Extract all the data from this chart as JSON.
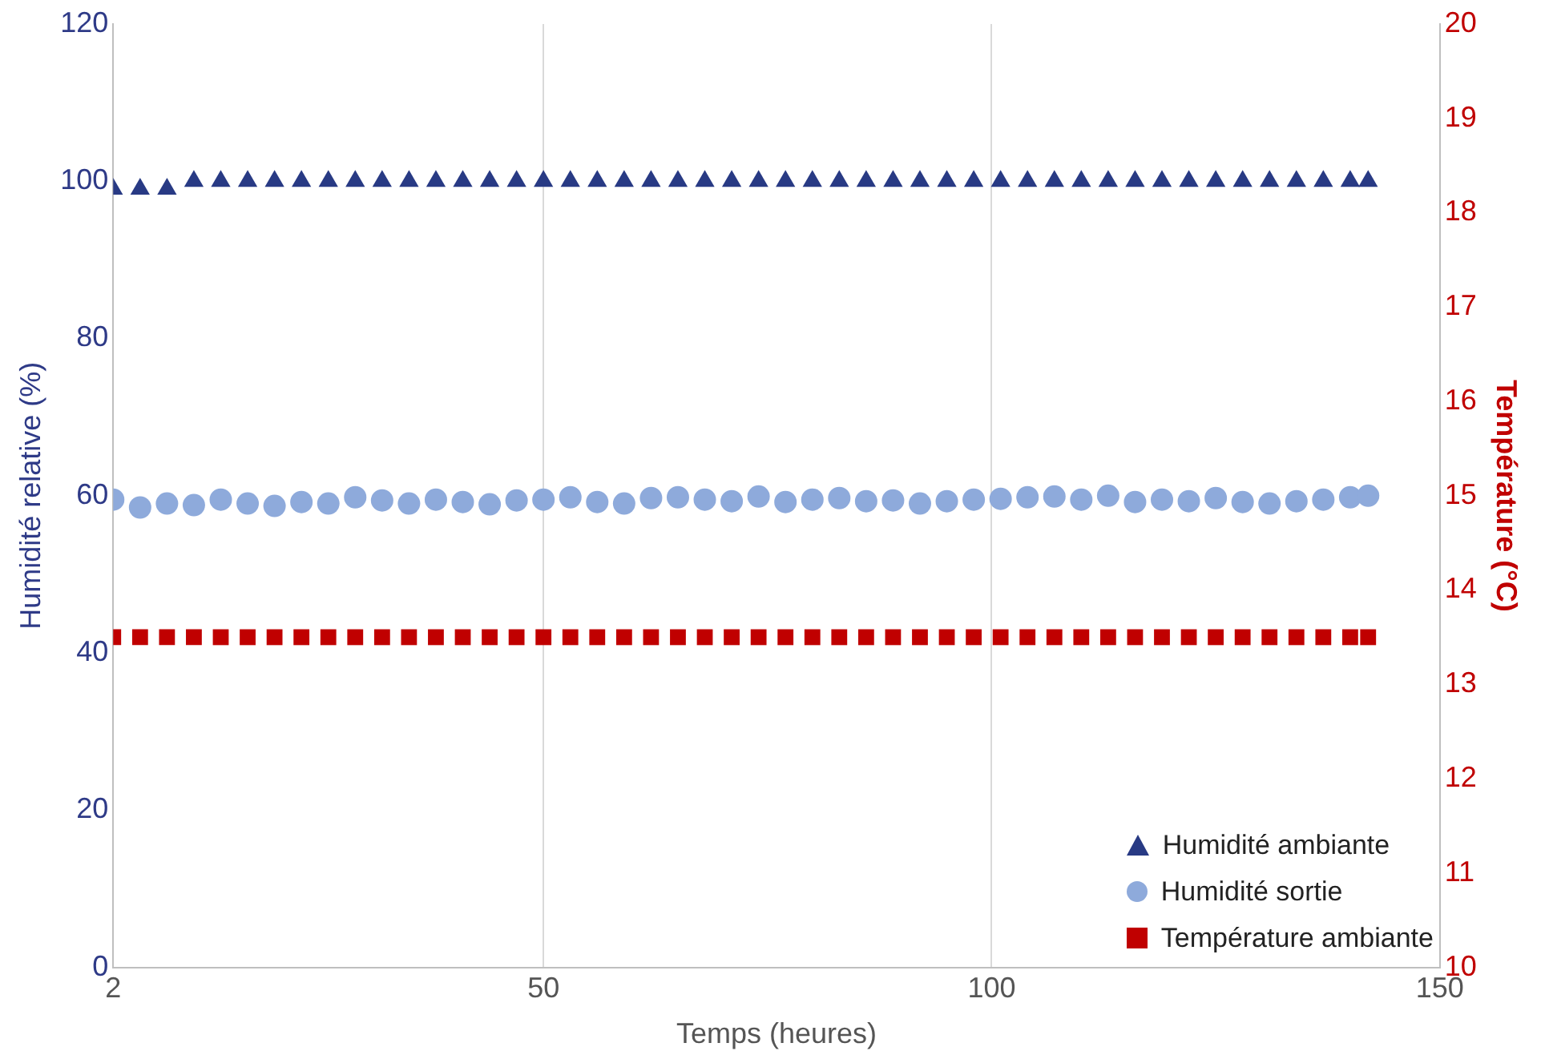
{
  "chart_data": {
    "type": "scatter",
    "xlabel": "Temps (heures)",
    "ylabel": "Humidité relative (%)",
    "y2label": "Température (°C)",
    "x": [
      2,
      5,
      8,
      11,
      14,
      17,
      20,
      23,
      26,
      29,
      32,
      35,
      38,
      41,
      44,
      47,
      50,
      53,
      56,
      59,
      62,
      65,
      68,
      71,
      74,
      77,
      80,
      83,
      86,
      89,
      92,
      95,
      98,
      101,
      104,
      107,
      110,
      113,
      116,
      119,
      122,
      125,
      128,
      131,
      134,
      137,
      140,
      142
    ],
    "xlim": [
      2,
      150
    ],
    "xticks": [
      2,
      50,
      100,
      150
    ],
    "ylim": [
      0,
      120
    ],
    "yticks": [
      0,
      20,
      40,
      60,
      80,
      100,
      120
    ],
    "y2lim": [
      10,
      20
    ],
    "y2ticks": [
      10,
      11,
      12,
      13,
      14,
      15,
      16,
      17,
      18,
      19,
      20
    ],
    "grid": "x",
    "legend": "bottom right",
    "series": [
      {
        "name": "Humidité ambiante",
        "color": "#283a84",
        "marker": "triangle",
        "values": [
          99,
          99,
          99,
          100,
          100,
          100,
          100,
          100,
          100,
          100,
          100,
          100,
          100,
          100,
          100,
          100,
          100,
          100,
          100,
          100,
          100,
          100,
          100,
          100,
          100,
          100,
          100,
          100,
          100,
          100,
          100,
          100,
          100,
          100,
          100,
          100,
          100,
          100,
          100,
          100,
          100,
          100,
          100,
          100,
          100,
          100,
          100,
          100
        ]
      },
      {
        "name": "Humidité sortie",
        "color": "#8eaadb",
        "marker": "circle",
        "values": [
          59.5,
          58.5,
          59,
          58.8,
          59.5,
          59,
          58.7,
          59.2,
          59,
          59.8,
          59.4,
          59,
          59.5,
          59.2,
          58.9,
          59.4,
          59.5,
          59.8,
          59.2,
          59,
          59.7,
          59.8,
          59.5,
          59.3,
          59.9,
          59.2,
          59.5,
          59.7,
          59.3,
          59.4,
          59,
          59.3,
          59.5,
          59.6,
          59.8,
          59.9,
          59.5,
          60,
          59.2,
          59.5,
          59.3,
          59.7,
          59.2,
          59,
          59.3,
          59.5,
          59.8,
          60
        ]
      },
      {
        "name": "Température ambiante",
        "color": "#c00000",
        "marker": "square",
        "axis": "y2",
        "values": [
          13.5,
          13.5,
          13.5,
          13.5,
          13.5,
          13.5,
          13.5,
          13.5,
          13.5,
          13.5,
          13.5,
          13.5,
          13.5,
          13.5,
          13.5,
          13.5,
          13.5,
          13.5,
          13.5,
          13.5,
          13.5,
          13.5,
          13.5,
          13.5,
          13.5,
          13.5,
          13.5,
          13.5,
          13.5,
          13.5,
          13.5,
          13.5,
          13.5,
          13.5,
          13.5,
          13.5,
          13.5,
          13.5,
          13.5,
          13.5,
          13.5,
          13.5,
          13.5,
          13.5,
          13.5,
          13.5,
          13.5,
          13.5
        ]
      }
    ]
  }
}
